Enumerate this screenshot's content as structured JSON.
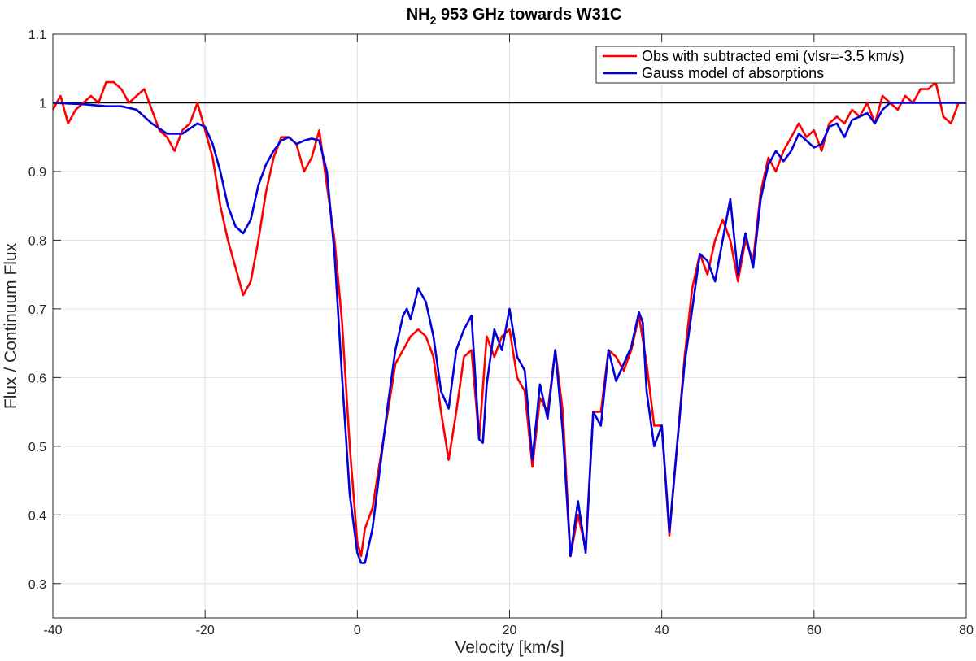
{
  "chart_data": {
    "type": "line",
    "title": "NH",
    "title_subscript": "2",
    "title_suffix": " 953 GHz towards W31C",
    "xlabel": "Velocity [km/s]",
    "ylabel": "Flux / Continuum Flux",
    "xlim": [
      -40,
      80
    ],
    "ylim": [
      0.25,
      1.1
    ],
    "x_ticks": [
      -40,
      -20,
      0,
      20,
      40,
      60,
      80
    ],
    "x_tick_labels": [
      "-40",
      "-20",
      "0",
      "20",
      "40",
      "60",
      "80"
    ],
    "y_ticks": [
      0.3,
      0.4,
      0.5,
      0.6,
      0.7,
      0.8,
      0.9,
      1.0,
      1.1
    ],
    "y_tick_labels": [
      "0.3",
      "0.4",
      "0.5",
      "0.6",
      "0.7",
      "0.8",
      "0.9",
      "1",
      "1.1"
    ],
    "grid": true,
    "legend_position": "top-right",
    "reference_line": {
      "y": 1.0,
      "color": "#000000"
    },
    "series": [
      {
        "name": "Obs with subtracted emi (vlsr=-3.5 km/s)",
        "color": "#ff0000",
        "x": [
          -40,
          -39,
          -38,
          -37,
          -36,
          -35,
          -34,
          -33,
          -32,
          -31,
          -30,
          -29,
          -28,
          -27,
          -26,
          -25,
          -24,
          -23,
          -22,
          -21,
          -20,
          -19,
          -18,
          -17,
          -16,
          -15,
          -14,
          -13,
          -12,
          -11,
          -10,
          -9,
          -8,
          -7,
          -6,
          -5,
          -4,
          -3,
          -2,
          -1,
          0,
          0.5,
          1,
          2,
          3,
          4,
          5,
          6,
          7,
          8,
          9,
          10,
          11,
          12,
          13,
          14,
          15,
          16,
          17,
          18,
          19,
          20,
          21,
          22,
          23,
          24,
          25,
          26,
          27,
          28,
          29,
          30,
          31,
          32,
          33,
          34,
          35,
          36,
          37,
          38,
          39,
          40,
          41,
          42,
          43,
          44,
          45,
          46,
          47,
          48,
          49,
          50,
          51,
          52,
          53,
          54,
          55,
          56,
          57,
          58,
          59,
          60,
          61,
          62,
          63,
          64,
          65,
          66,
          67,
          68,
          69,
          70,
          71,
          72,
          73,
          74,
          75,
          76,
          77,
          78,
          79,
          80
        ],
        "y": [
          0.99,
          1.01,
          0.97,
          0.99,
          1.0,
          1.01,
          1.0,
          1.03,
          1.03,
          1.02,
          1.0,
          1.01,
          1.02,
          0.99,
          0.96,
          0.95,
          0.93,
          0.96,
          0.97,
          1.0,
          0.96,
          0.92,
          0.85,
          0.8,
          0.76,
          0.72,
          0.74,
          0.8,
          0.87,
          0.92,
          0.95,
          0.95,
          0.94,
          0.9,
          0.92,
          0.96,
          0.88,
          0.8,
          0.68,
          0.5,
          0.36,
          0.34,
          0.38,
          0.41,
          0.48,
          0.55,
          0.62,
          0.64,
          0.66,
          0.67,
          0.66,
          0.63,
          0.55,
          0.48,
          0.55,
          0.63,
          0.64,
          0.51,
          0.66,
          0.63,
          0.66,
          0.67,
          0.6,
          0.58,
          0.47,
          0.57,
          0.55,
          0.64,
          0.55,
          0.34,
          0.4,
          0.35,
          0.55,
          0.55,
          0.64,
          0.63,
          0.61,
          0.64,
          0.69,
          0.62,
          0.53,
          0.53,
          0.37,
          0.5,
          0.63,
          0.73,
          0.78,
          0.75,
          0.8,
          0.83,
          0.8,
          0.74,
          0.8,
          0.77,
          0.87,
          0.92,
          0.9,
          0.93,
          0.95,
          0.97,
          0.95,
          0.96,
          0.93,
          0.97,
          0.98,
          0.97,
          0.99,
          0.98,
          1.0,
          0.97,
          1.01,
          1.0,
          0.99,
          1.01,
          1.0,
          1.02,
          1.02,
          1.03,
          0.98,
          0.97,
          1.0,
          1.0
        ]
      },
      {
        "name": "Gauss model of absorptions",
        "color": "#0000dd",
        "x": [
          -40,
          -36,
          -33,
          -31,
          -29,
          -27,
          -25,
          -23,
          -21,
          -20,
          -19,
          -18,
          -17,
          -16,
          -15,
          -14,
          -13,
          -12,
          -11,
          -10,
          -9,
          -8,
          -7,
          -6,
          -5,
          -4,
          -3,
          -2,
          -1,
          0,
          0.5,
          1,
          2,
          3,
          4,
          5,
          6,
          6.5,
          7,
          8,
          9,
          10,
          11,
          12,
          13,
          14,
          15,
          16,
          16.5,
          17,
          18,
          19,
          20,
          21,
          22,
          23,
          24,
          25,
          26,
          27,
          28,
          29,
          30,
          31,
          32,
          33,
          34,
          35,
          36,
          37,
          37.5,
          38,
          39,
          40,
          41,
          42,
          43,
          44,
          45,
          46,
          47,
          48,
          49,
          50,
          51,
          52,
          53,
          54,
          55,
          56,
          57,
          58,
          59,
          60,
          61,
          62,
          63,
          64,
          65,
          66,
          67,
          68,
          69,
          70,
          72,
          74,
          76,
          78,
          80
        ],
        "y": [
          1.0,
          0.998,
          0.995,
          0.995,
          0.99,
          0.97,
          0.955,
          0.955,
          0.97,
          0.965,
          0.94,
          0.9,
          0.85,
          0.82,
          0.81,
          0.83,
          0.88,
          0.91,
          0.93,
          0.945,
          0.95,
          0.94,
          0.945,
          0.948,
          0.945,
          0.9,
          0.78,
          0.6,
          0.43,
          0.345,
          0.33,
          0.33,
          0.38,
          0.47,
          0.56,
          0.64,
          0.69,
          0.7,
          0.685,
          0.73,
          0.71,
          0.66,
          0.58,
          0.555,
          0.64,
          0.67,
          0.69,
          0.51,
          0.505,
          0.59,
          0.67,
          0.64,
          0.7,
          0.63,
          0.61,
          0.48,
          0.59,
          0.54,
          0.64,
          0.52,
          0.34,
          0.42,
          0.345,
          0.55,
          0.53,
          0.64,
          0.595,
          0.62,
          0.645,
          0.695,
          0.68,
          0.58,
          0.5,
          0.53,
          0.375,
          0.5,
          0.62,
          0.7,
          0.78,
          0.77,
          0.74,
          0.8,
          0.86,
          0.75,
          0.81,
          0.76,
          0.86,
          0.91,
          0.93,
          0.915,
          0.93,
          0.955,
          0.945,
          0.935,
          0.94,
          0.965,
          0.97,
          0.95,
          0.975,
          0.98,
          0.985,
          0.97,
          0.99,
          1.0,
          1.0,
          1.0,
          1.0,
          1.0,
          1.0
        ]
      }
    ]
  }
}
